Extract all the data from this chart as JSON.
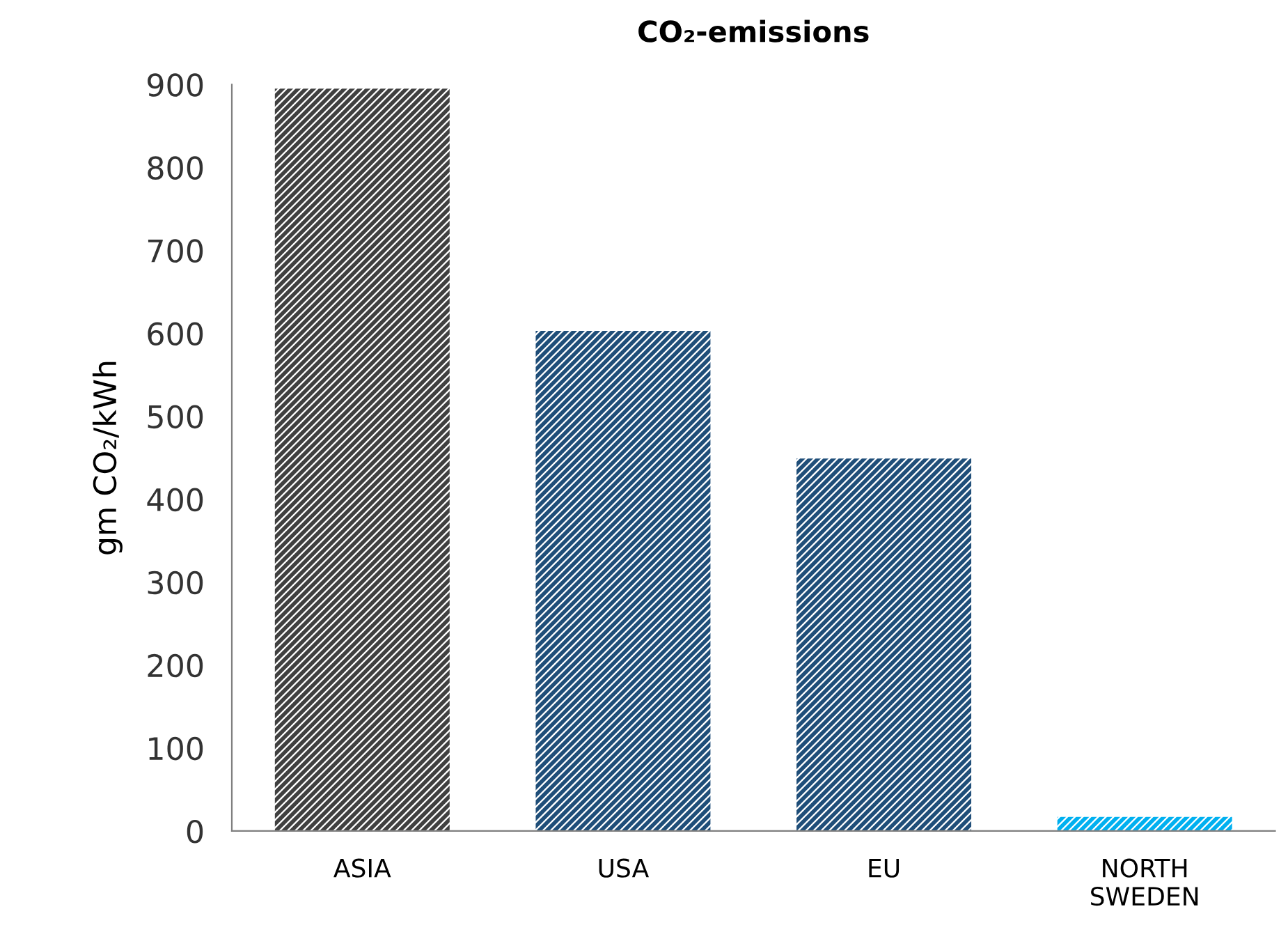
{
  "chart_data": {
    "type": "bar",
    "title": "CO₂-emissions",
    "ylabel": "gm CO₂/kWh",
    "categories": [
      "ASIA",
      "USA",
      "EU",
      "NORTH\nSWEDEN"
    ],
    "values": [
      895,
      603,
      449,
      17
    ],
    "colors": [
      "#404040",
      "#1f4e79",
      "#1f4e79",
      "#00b0f0"
    ],
    "ylim": [
      0,
      900
    ],
    "yticks": [
      0,
      100,
      200,
      300,
      400,
      500,
      600,
      700,
      800,
      900
    ],
    "grid": false,
    "legend": false
  }
}
